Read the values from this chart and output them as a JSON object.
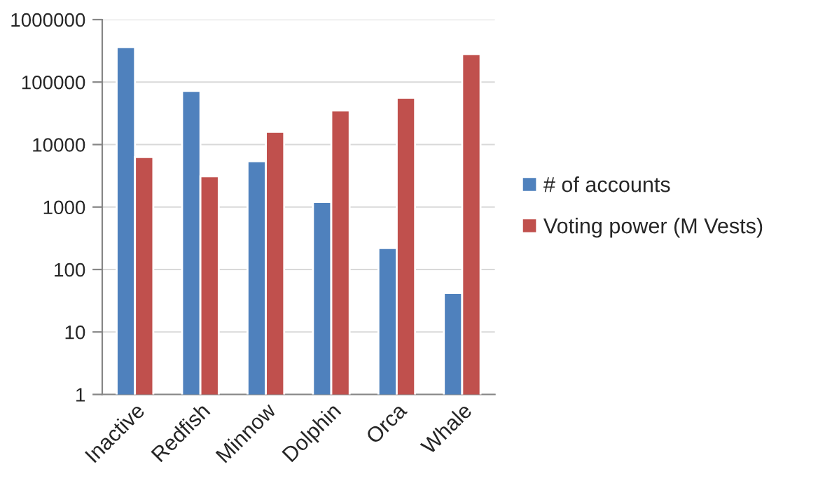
{
  "chart_data": {
    "type": "bar",
    "categories": [
      "Inactive",
      "Redfish",
      "Minnow",
      "Dolphin",
      "Orca",
      "Whale"
    ],
    "series": [
      {
        "name": "# of accounts",
        "color": "#4f81bd",
        "values": [
          363000,
          72000,
          5400,
          1200,
          220,
          42
        ]
      },
      {
        "name": "Voting power (M Vests)",
        "color": "#c0504d",
        "values": [
          6300,
          3100,
          16000,
          35000,
          56000,
          280000
        ]
      }
    ],
    "log": true,
    "ylim": [
      1,
      1000000
    ],
    "yticks": [
      1,
      10,
      100,
      1000,
      10000,
      100000,
      1000000
    ],
    "grid": "y",
    "legend": "right"
  }
}
